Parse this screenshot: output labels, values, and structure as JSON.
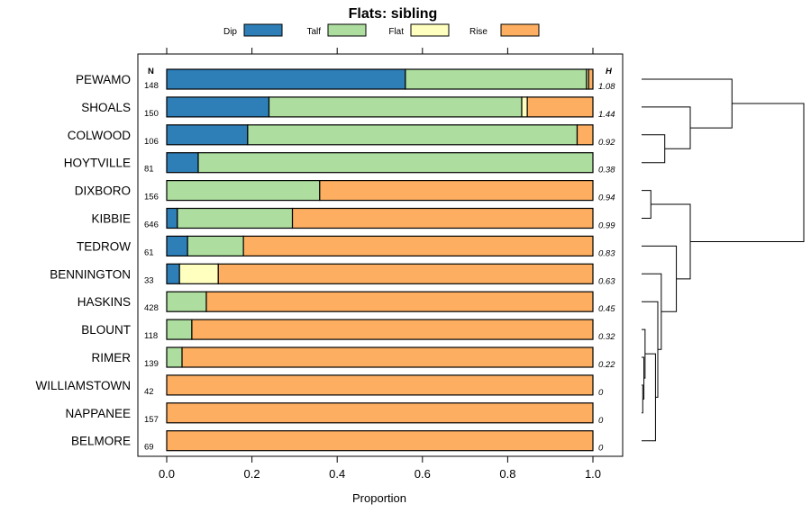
{
  "chart_data": {
    "type": "bar",
    "orientation": "horizontal",
    "stacked": true,
    "title": "Flats: sibling",
    "xlabel": "Proportion",
    "ylabel": "",
    "xlim": [
      0,
      1
    ],
    "x_ticks": [
      "0.0",
      "0.2",
      "0.4",
      "0.6",
      "0.8",
      "1.0"
    ],
    "n_header": "N",
    "h_header": "H",
    "legend": [
      {
        "name": "Dip",
        "color": "#2e7fb8"
      },
      {
        "name": "Talf",
        "color": "#addd9f"
      },
      {
        "name": "Flat",
        "color": "#ffffbf"
      },
      {
        "name": "Rise",
        "color": "#fdae61"
      }
    ],
    "categories": [
      "PEWAMO",
      "SHOALS",
      "COLWOOD",
      "HOYTVILLE",
      "DIXBORO",
      "KIBBIE",
      "TEDROW",
      "BENNINGTON",
      "HASKINS",
      "BLOUNT",
      "RIMER",
      "WILLIAMSTOWN",
      "NAPPANEE",
      "BELMORE"
    ],
    "n": [
      "148",
      "150",
      "106",
      "81",
      "156",
      "646",
      "61",
      "33",
      "428",
      "118",
      "139",
      "42",
      "157",
      "69"
    ],
    "h": [
      "1.08",
      "1.44",
      "0.92",
      "0.38",
      "0.94",
      "0.99",
      "0.83",
      "0.63",
      "0.45",
      "0.32",
      "0.22",
      "0",
      "0",
      "0"
    ],
    "series": [
      {
        "name": "Dip",
        "values": [
          0.56,
          0.24,
          0.19,
          0.074,
          0,
          0.025,
          0.049,
          0.03,
          0,
          0,
          0,
          0,
          0,
          0
        ]
      },
      {
        "name": "Talf",
        "values": [
          0.425,
          0.593,
          0.773,
          0.926,
          0.359,
          0.27,
          0.131,
          0,
          0.093,
          0.059,
          0.036,
          0,
          0,
          0
        ]
      },
      {
        "name": "Flat",
        "values": [
          0.005,
          0.013,
          0,
          0,
          0,
          0,
          0,
          0.091,
          0,
          0,
          0,
          0,
          0,
          0
        ]
      },
      {
        "name": "Rise",
        "values": [
          0.01,
          0.154,
          0.037,
          0,
          0.641,
          0.705,
          0.82,
          0.879,
          0.907,
          0.941,
          0.964,
          1.0,
          1.0,
          1.0
        ]
      }
    ],
    "dendrogram": {
      "leaf_order": [
        "PEWAMO",
        "SHOALS",
        "COLWOOD",
        "HOYTVILLE",
        "DIXBORO",
        "KIBBIE",
        "TEDROW",
        "BENNINGTON",
        "HASKINS",
        "BLOUNT",
        "RIMER",
        "WILLIAMSTOWN",
        "NAPPANEE",
        "BELMORE"
      ],
      "merges": [
        {
          "id": "n1",
          "left": "WILLIAMSTOWN",
          "right": "NAPPANEE",
          "height": 0.01
        },
        {
          "id": "n2",
          "left": "RIMER",
          "right": "n1",
          "height": 0.02
        },
        {
          "id": "n3",
          "left": "BLOUNT",
          "right": "n2",
          "height": 0.03
        },
        {
          "id": "n4",
          "left": "n3",
          "right": "BELMORE",
          "height": 0.12
        },
        {
          "id": "n5",
          "left": "HASKINS",
          "right": "n4",
          "height": 0.14
        },
        {
          "id": "n6",
          "left": "BENNINGTON",
          "right": "n5",
          "height": 0.17
        },
        {
          "id": "n7",
          "left": "DIXBORO",
          "right": "KIBBIE",
          "height": 0.08
        },
        {
          "id": "n8",
          "left": "TEDROW",
          "right": "n6",
          "height": 0.3
        },
        {
          "id": "n9",
          "left": "n7",
          "right": "n8",
          "height": 0.42
        },
        {
          "id": "n10",
          "left": "COLWOOD",
          "right": "HOYTVILLE",
          "height": 0.2
        },
        {
          "id": "n11",
          "left": "SHOALS",
          "right": "n10",
          "height": 0.42
        },
        {
          "id": "n12",
          "left": "PEWAMO",
          "right": "n11",
          "height": 0.78
        },
        {
          "id": "n13",
          "left": "n12",
          "right": "n9",
          "height": 1.4
        }
      ]
    }
  }
}
